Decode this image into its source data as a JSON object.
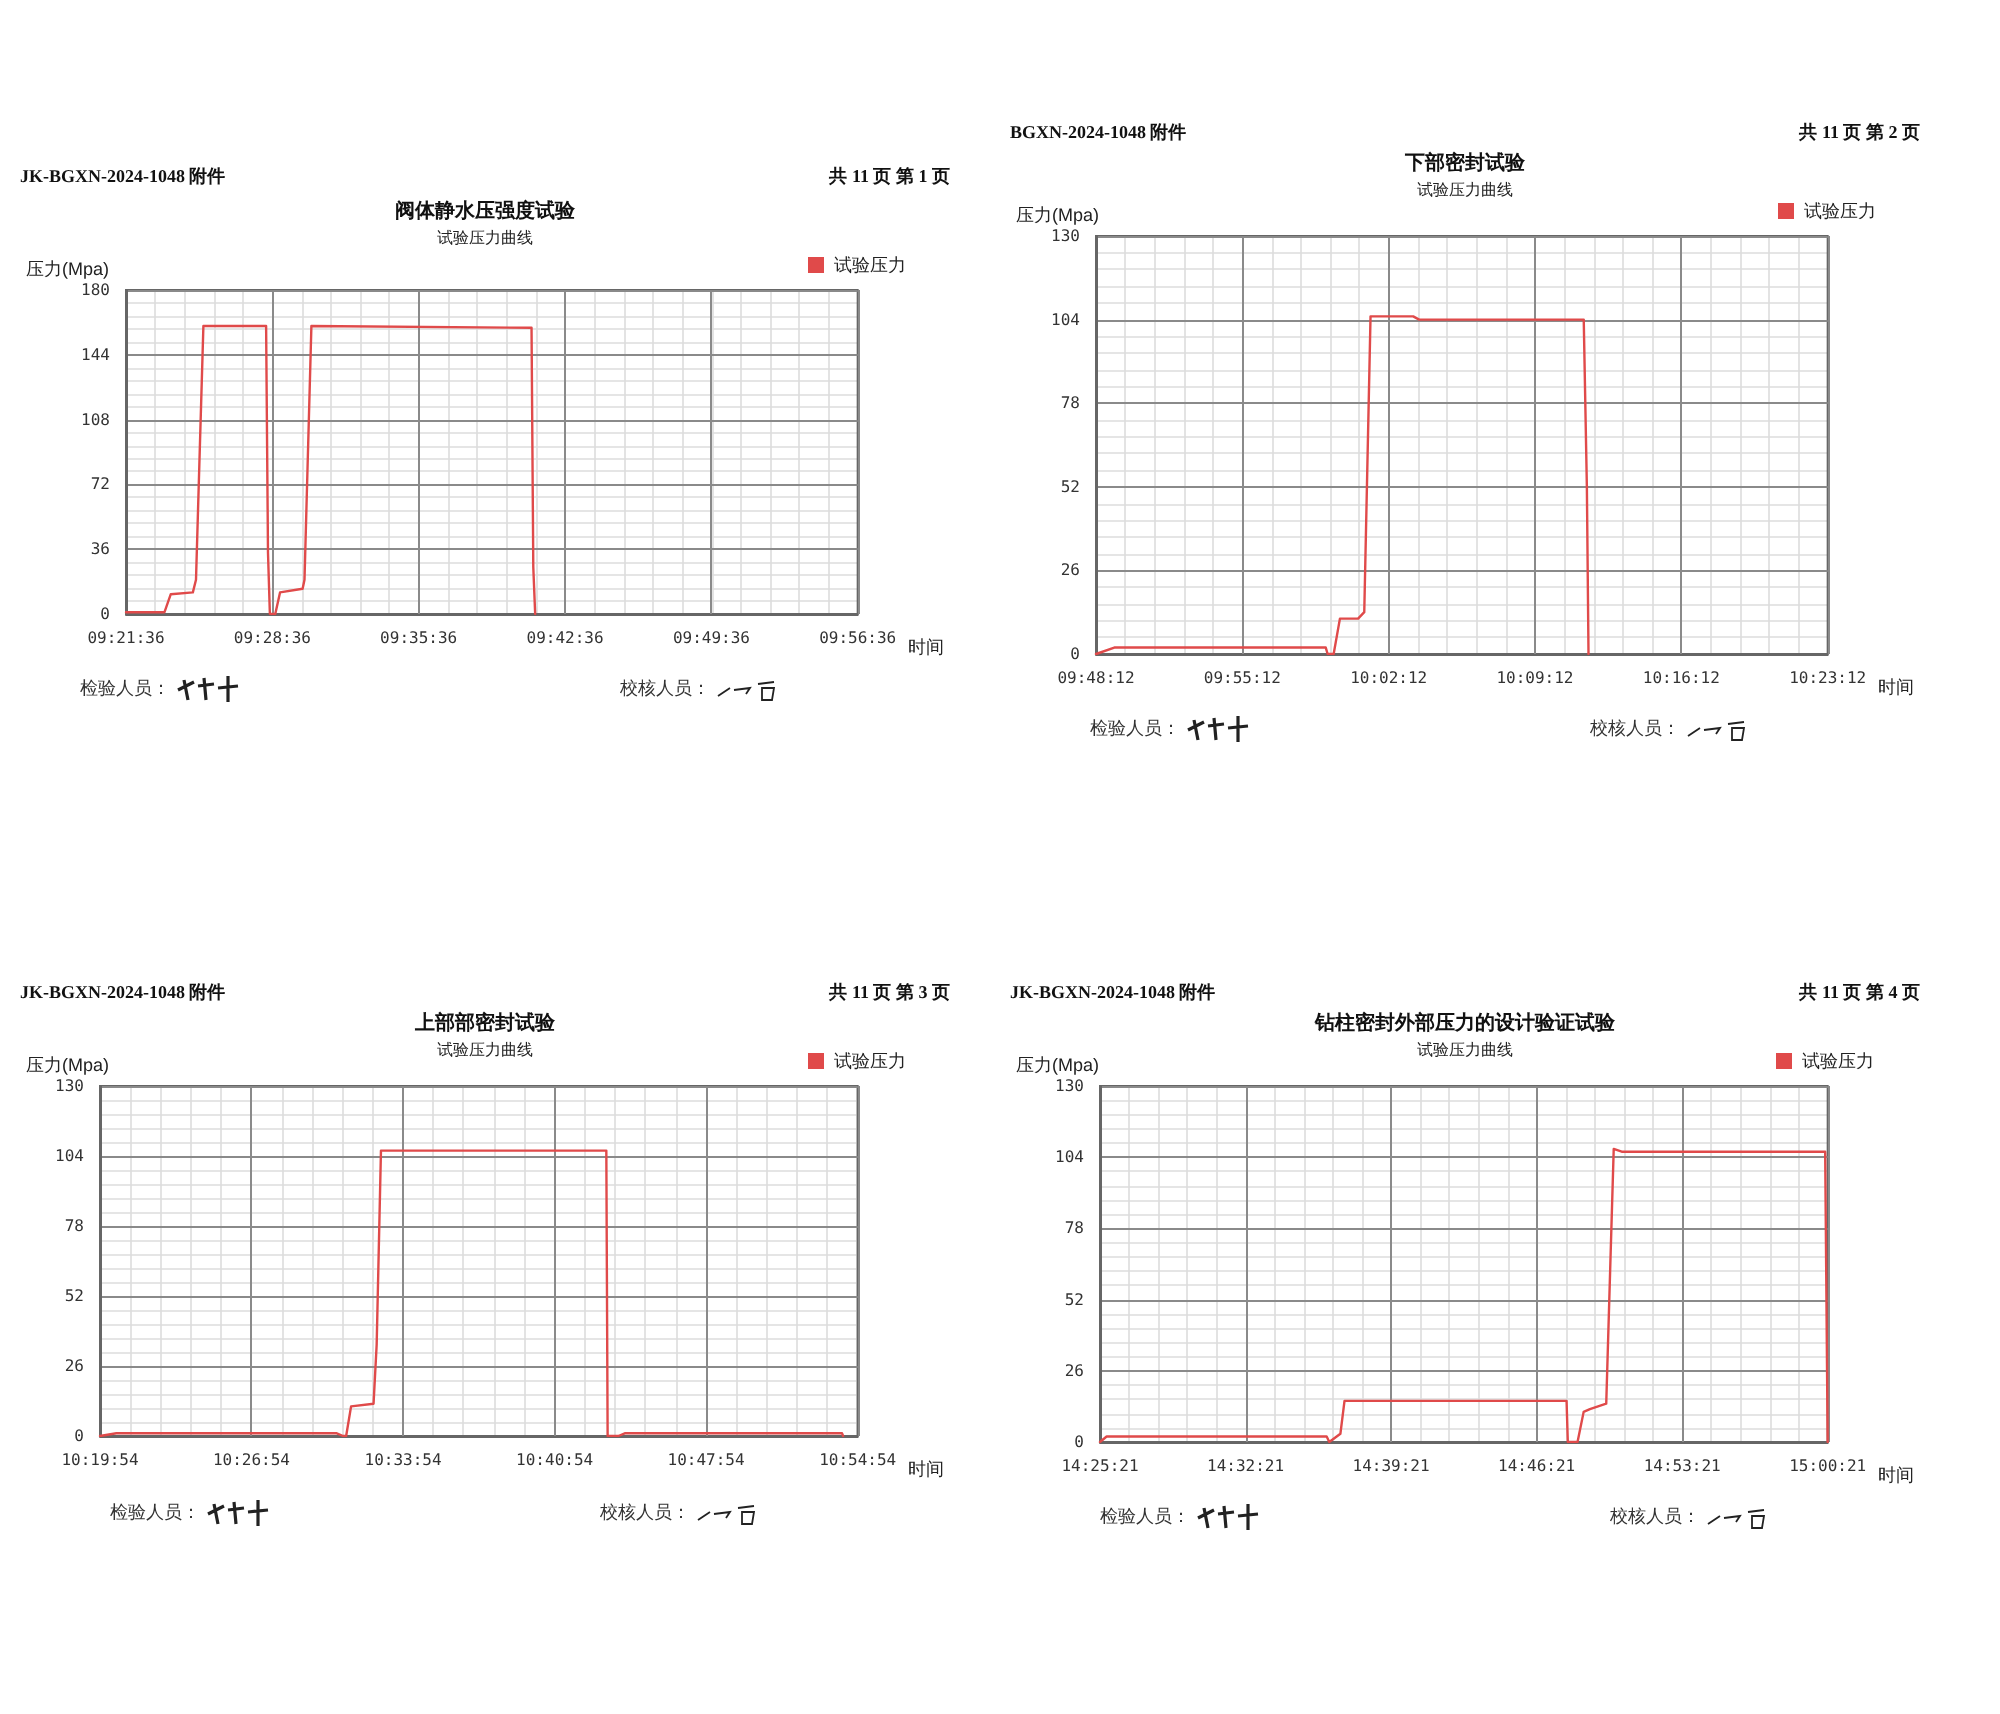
{
  "chart_data": [
    {
      "type": "line",
      "title": "阀体静水压强度试验",
      "subtitle": "试验压力曲线",
      "xlabel": "时间",
      "ylabel": "压力(Mpa)",
      "annotations": [
        "JK-BGXN-2024-1048 附件",
        "共 11 页  第 1 页",
        "检验人员：",
        "校核人员："
      ],
      "x": [
        9.36,
        9.3907,
        9.3957,
        9.4133,
        9.4158,
        9.4217,
        9.4717,
        9.4732,
        9.4747,
        9.479,
        9.4828,
        9.5008,
        9.5023,
        9.5078,
        9.6833,
        9.6847,
        9.6862
      ],
      "series": [
        {
          "name": "试验压力",
          "color": "#e04a4a",
          "values": [
            1,
            1,
            11,
            12,
            19,
            160,
            160,
            34,
            0,
            0,
            12,
            14,
            19,
            160,
            159,
            26,
            0
          ]
        }
      ],
      "xlim": [
        9.36,
        9.9433
      ],
      "xticks": [
        {
          "value": 9.36,
          "label": "09:21:36"
        },
        {
          "value": 9.4767,
          "label": "09:28:36"
        },
        {
          "value": 9.5933,
          "label": "09:35:36"
        },
        {
          "value": 9.71,
          "label": "09:42:36"
        },
        {
          "value": 9.8267,
          "label": "09:49:36"
        },
        {
          "value": 9.9433,
          "label": "09:56:36"
        }
      ],
      "ylim": [
        0,
        180
      ],
      "yticks": [
        0,
        36,
        72,
        108,
        144,
        180
      ],
      "grid": true,
      "legend": "top right",
      "marker": "none",
      "line_style": "solid"
    },
    {
      "type": "line",
      "title": "下部密封试验",
      "subtitle": "试验压力曲线",
      "xlabel": "时间",
      "ylabel": "压力(Mpa)",
      "annotations": [
        "BGXN-2024-1048 附件",
        "共 11 页  第 2 页",
        "检验人员：",
        "校核人员："
      ],
      "x": [
        9.8033,
        9.8179,
        9.9865,
        9.988,
        9.9928,
        9.9978,
        10.0123,
        10.0172,
        10.0222,
        10.0562,
        10.061,
        10.1922,
        10.1947,
        10.196
      ],
      "series": [
        {
          "name": "试验压力",
          "color": "#e04a4a",
          "values": [
            0,
            2,
            2,
            0,
            0,
            11,
            11,
            13,
            105,
            105,
            104,
            104,
            52,
            0
          ]
        }
      ],
      "xlim": [
        9.8033,
        10.3867
      ],
      "xticks": [
        {
          "value": 9.8033,
          "label": "09:48:12"
        },
        {
          "value": 9.92,
          "label": "09:55:12"
        },
        {
          "value": 10.0367,
          "label": "10:02:12"
        },
        {
          "value": 10.1533,
          "label": "10:09:12"
        },
        {
          "value": 10.27,
          "label": "10:16:12"
        },
        {
          "value": 10.3867,
          "label": "10:23:12"
        }
      ],
      "ylim": [
        0,
        130
      ],
      "yticks": [
        0,
        26,
        52,
        78,
        104,
        130
      ],
      "grid": true,
      "legend": "top right",
      "marker": "none",
      "line_style": "solid"
    },
    {
      "type": "line",
      "title": "上部部密封试验",
      "subtitle": "试验压力曲线",
      "xlabel": "时间",
      "ylabel": "压力(Mpa)",
      "annotations": [
        "JK-BGXN-2024-1048 附件",
        "共 11 页  第 3 页",
        "检验人员：",
        "校核人员："
      ],
      "x": [
        10.3317,
        10.3443,
        10.514,
        10.5188,
        10.5212,
        10.525,
        10.5423,
        10.5447,
        10.548,
        10.7215,
        10.7225,
        10.7308,
        10.7357,
        10.903,
        10.9038
      ],
      "series": [
        {
          "name": "试验压力",
          "color": "#e04a4a",
          "values": [
            0,
            1,
            1,
            0,
            0,
            11,
            12,
            34,
            106,
            106,
            0,
            0,
            1,
            1,
            0
          ]
        }
      ],
      "xlim": [
        10.3317,
        10.915
      ],
      "xticks": [
        {
          "value": 10.3317,
          "label": "10:19:54"
        },
        {
          "value": 10.4483,
          "label": "10:26:54"
        },
        {
          "value": 10.565,
          "label": "10:33:54"
        },
        {
          "value": 10.6817,
          "label": "10:40:54"
        },
        {
          "value": 10.7983,
          "label": "10:47:54"
        },
        {
          "value": 10.915,
          "label": "10:54:54"
        }
      ],
      "ylim": [
        0,
        130
      ],
      "yticks": [
        0,
        26,
        52,
        78,
        104,
        130
      ],
      "grid": true,
      "legend": "top right",
      "marker": "none",
      "line_style": "solid"
    },
    {
      "type": "line",
      "title": "钻柱密封外部压力的设计验证试验",
      "subtitle": "试验压力曲线",
      "xlabel": "时间",
      "ylabel": "压力(Mpa)",
      "annotations": [
        "JK-BGXN-2024-1048 附件",
        "共 11 页  第 4 页",
        "检验人员：",
        "校核人员："
      ],
      "x": [
        14.4225,
        14.4278,
        14.6042,
        14.6063,
        14.6152,
        14.6185,
        14.7965,
        14.7975,
        14.8053,
        14.8102,
        14.8152,
        14.8283,
        14.8343,
        14.8407,
        15.0038,
        15.0058
      ],
      "series": [
        {
          "name": "试验压力",
          "color": "#e04a4a",
          "values": [
            0,
            2,
            2,
            0,
            3,
            15,
            15,
            0,
            0,
            11,
            12,
            14,
            107,
            106,
            106,
            0
          ]
        }
      ],
      "xlim": [
        14.4225,
        15.0058
      ],
      "xticks": [
        {
          "value": 14.4225,
          "label": "14:25:21"
        },
        {
          "value": 14.5392,
          "label": "14:32:21"
        },
        {
          "value": 14.6558,
          "label": "14:39:21"
        },
        {
          "value": 14.7725,
          "label": "14:46:21"
        },
        {
          "value": 14.8892,
          "label": "14:53:21"
        },
        {
          "value": 15.0058,
          "label": "15:00:21"
        }
      ],
      "ylim": [
        0,
        130
      ],
      "yticks": [
        0,
        26,
        52,
        78,
        104,
        130
      ],
      "grid": true,
      "legend": "top right",
      "marker": "none",
      "line_style": "solid"
    }
  ]
}
